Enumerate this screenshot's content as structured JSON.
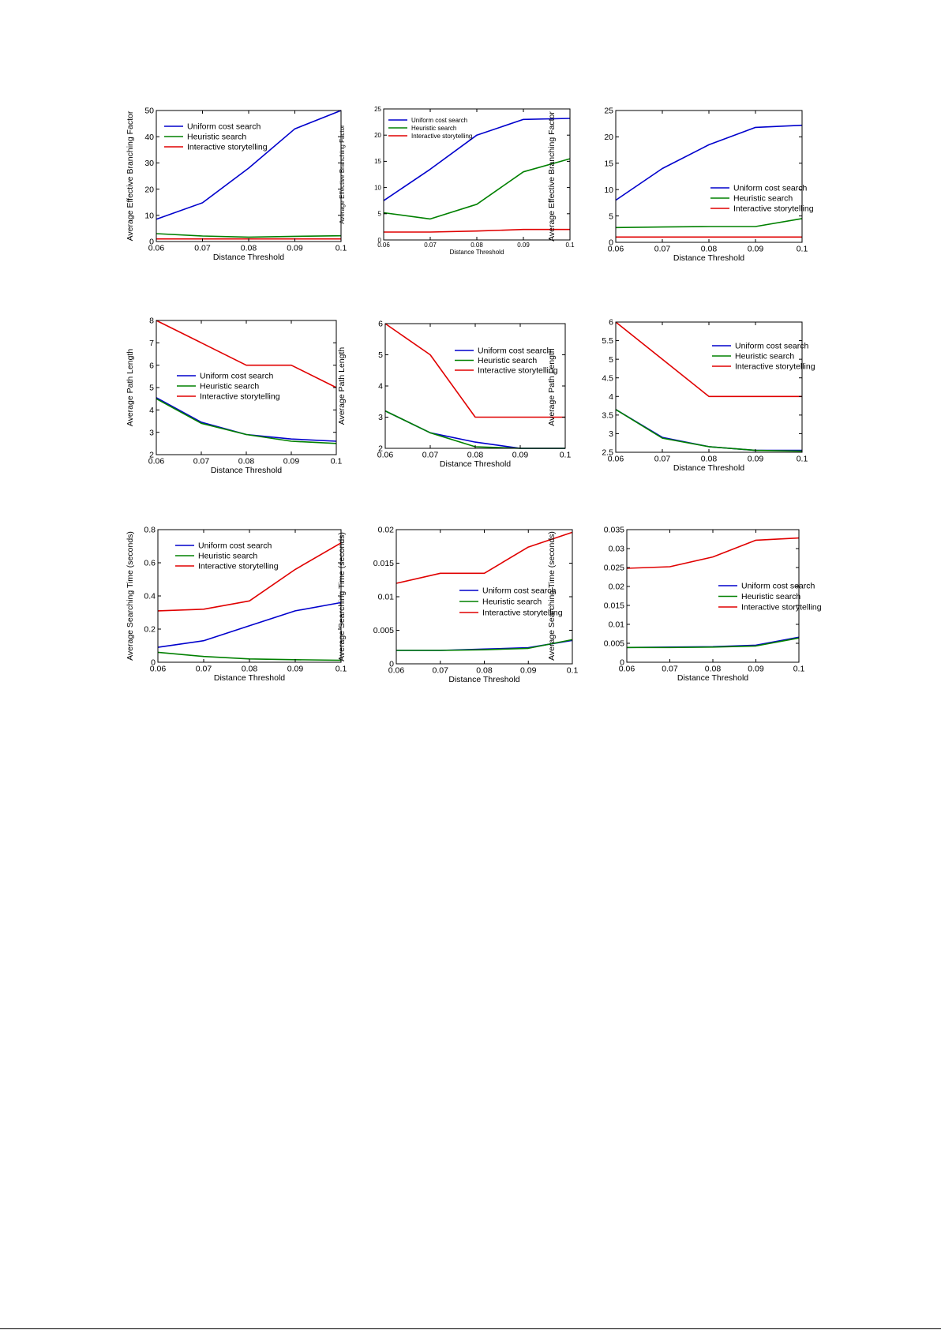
{
  "colors": {
    "uniform": "#0000cc",
    "heuristic": "#008000",
    "interactive": "#e00000"
  },
  "chart_data": [
    {
      "type": "line",
      "title": "",
      "xlabel": "Distance Threshold",
      "ylabel": "Average Effective Branching Factor",
      "x": [
        0.06,
        0.07,
        0.08,
        0.09,
        0.1
      ],
      "xticks": [
        "0.06",
        "0.07",
        "0.08",
        "0.09",
        "0.1"
      ],
      "ylim": [
        0,
        50
      ],
      "yticks": [
        0,
        10,
        20,
        30,
        40,
        50
      ],
      "ytick_labels": [
        "0",
        "10",
        "20",
        "30",
        "40",
        "50"
      ],
      "legend_position": "top-left",
      "series": [
        {
          "name": "Uniform cost search",
          "color_key": "uniform",
          "values": [
            8.5,
            14.8,
            28,
            43,
            50
          ]
        },
        {
          "name": "Heuristic search",
          "color_key": "heuristic",
          "values": [
            3,
            2.1,
            1.7,
            2,
            2.2
          ]
        },
        {
          "name": "Interactive storytelling",
          "color_key": "interactive",
          "values": [
            1,
            1,
            1,
            1,
            1
          ]
        }
      ]
    },
    {
      "type": "line",
      "title": "",
      "xlabel": "Distance Threshold",
      "ylabel": "Average Effective Branching Factor",
      "x": [
        0.06,
        0.07,
        0.08,
        0.09,
        0.1
      ],
      "xticks": [
        "0.06",
        "0.07",
        "0.08",
        "0.09",
        "0.1"
      ],
      "ylim": [
        0,
        25
      ],
      "yticks": [
        0,
        5,
        10,
        15,
        20,
        25
      ],
      "ytick_labels": [
        "0",
        "5",
        "10",
        "15",
        "20",
        "25"
      ],
      "legend_position": "top-left",
      "series": [
        {
          "name": "Uniform cost search",
          "color_key": "uniform",
          "values": [
            7.5,
            13.5,
            20,
            23,
            23.2
          ]
        },
        {
          "name": "Heuristic search",
          "color_key": "heuristic",
          "values": [
            5.2,
            4,
            6.8,
            13,
            15.5
          ]
        },
        {
          "name": "Interactive storytelling",
          "color_key": "interactive",
          "values": [
            1.5,
            1.5,
            1.7,
            2,
            2
          ]
        }
      ]
    },
    {
      "type": "line",
      "title": "",
      "xlabel": "Distance Threshold",
      "ylabel": "Average Effective Branching Factor",
      "x": [
        0.06,
        0.07,
        0.08,
        0.09,
        0.1
      ],
      "xticks": [
        "0.06",
        "0.07",
        "0.08",
        "0.09",
        "0.1"
      ],
      "ylim": [
        0,
        25
      ],
      "yticks": [
        0,
        5,
        10,
        15,
        20,
        25
      ],
      "ytick_labels": [
        "0",
        "5",
        "10",
        "15",
        "20",
        "25"
      ],
      "legend_position": "center-right",
      "series": [
        {
          "name": "Uniform cost search",
          "color_key": "uniform",
          "values": [
            8,
            14,
            18.5,
            21.8,
            22.2
          ]
        },
        {
          "name": "Heuristic search",
          "color_key": "heuristic",
          "values": [
            2.8,
            2.9,
            3,
            3,
            4.5
          ]
        },
        {
          "name": "Interactive storytelling",
          "color_key": "interactive",
          "values": [
            1,
            1,
            1,
            1,
            1
          ]
        }
      ]
    },
    {
      "type": "line",
      "title": "",
      "xlabel": "Distance Threshold",
      "ylabel": "Average Path Length",
      "x": [
        0.06,
        0.07,
        0.08,
        0.09,
        0.1
      ],
      "xticks": [
        "0.06",
        "0.07",
        "0.08",
        "0.09",
        "0.1"
      ],
      "ylim": [
        2,
        8
      ],
      "yticks": [
        2,
        3,
        4,
        5,
        6,
        7,
        8
      ],
      "ytick_labels": [
        "2",
        "3",
        "4",
        "5",
        "6",
        "7",
        "8"
      ],
      "legend_position": "center-left",
      "series": [
        {
          "name": "Uniform cost search",
          "color_key": "uniform",
          "values": [
            4.55,
            3.45,
            2.9,
            2.7,
            2.6
          ]
        },
        {
          "name": "Heuristic search",
          "color_key": "heuristic",
          "values": [
            4.5,
            3.4,
            2.9,
            2.6,
            2.5
          ]
        },
        {
          "name": "Interactive storytelling",
          "color_key": "interactive",
          "values": [
            8,
            7,
            6,
            6,
            5
          ]
        }
      ]
    },
    {
      "type": "line",
      "title": "",
      "xlabel": "Distance Threshold",
      "ylabel": "Average Path Length",
      "x": [
        0.06,
        0.07,
        0.08,
        0.09,
        0.1
      ],
      "xticks": [
        "0.06",
        "0.07",
        "0.08",
        "0.09",
        "0.1"
      ],
      "ylim": [
        2,
        6
      ],
      "yticks": [
        2,
        3,
        4,
        5,
        6
      ],
      "ytick_labels": [
        "2",
        "3",
        "4",
        "5",
        "6"
      ],
      "legend_position": "top-right",
      "series": [
        {
          "name": "Uniform cost search",
          "color_key": "uniform",
          "values": [
            3.2,
            2.5,
            2.2,
            2,
            2
          ]
        },
        {
          "name": "Heuristic search",
          "color_key": "heuristic",
          "values": [
            3.2,
            2.5,
            2.05,
            2,
            2
          ]
        },
        {
          "name": "Interactive storytelling",
          "color_key": "interactive",
          "values": [
            6,
            5,
            3,
            3,
            3
          ]
        }
      ]
    },
    {
      "type": "line",
      "title": "",
      "xlabel": "Distance Threshold",
      "ylabel": "Average Path Length",
      "x": [
        0.06,
        0.07,
        0.08,
        0.09,
        0.1
      ],
      "xticks": [
        "0.06",
        "0.07",
        "0.08",
        "0.09",
        "0.1"
      ],
      "ylim": [
        2.5,
        6
      ],
      "yticks": [
        2.5,
        3,
        3.5,
        4,
        4.5,
        5,
        5.5,
        6
      ],
      "ytick_labels": [
        "2.5",
        "3",
        "3.5",
        "4",
        "4.5",
        "5",
        "5.5",
        "6"
      ],
      "legend_position": "top-right",
      "series": [
        {
          "name": "Uniform cost search",
          "color_key": "uniform",
          "values": [
            3.65,
            2.9,
            2.65,
            2.55,
            2.55
          ]
        },
        {
          "name": "Heuristic search",
          "color_key": "heuristic",
          "values": [
            3.65,
            2.88,
            2.65,
            2.55,
            2.53
          ]
        },
        {
          "name": "Interactive storytelling",
          "color_key": "interactive",
          "values": [
            6,
            5,
            4,
            4,
            4
          ]
        }
      ]
    },
    {
      "type": "line",
      "title": "",
      "xlabel": "Distance Threshold",
      "ylabel": "Average Searching Time (seconds)",
      "x": [
        0.06,
        0.07,
        0.08,
        0.09,
        0.1
      ],
      "xticks": [
        "0.06",
        "0.07",
        "0.08",
        "0.09",
        "0.1"
      ],
      "ylim": [
        0,
        0.8
      ],
      "yticks": [
        0,
        0.2,
        0.4,
        0.6,
        0.8
      ],
      "ytick_labels": [
        "0",
        "0.2",
        "0.4",
        "0.6",
        "0.8"
      ],
      "legend_position": "top-left",
      "series": [
        {
          "name": "Uniform cost search",
          "color_key": "uniform",
          "values": [
            0.09,
            0.13,
            0.22,
            0.31,
            0.36
          ]
        },
        {
          "name": "Heuristic search",
          "color_key": "heuristic",
          "values": [
            0.06,
            0.035,
            0.02,
            0.015,
            0.012
          ]
        },
        {
          "name": "Interactive storytelling",
          "color_key": "interactive",
          "values": [
            0.31,
            0.32,
            0.37,
            0.56,
            0.72
          ]
        }
      ]
    },
    {
      "type": "line",
      "title": "",
      "xlabel": "Distance Threshold",
      "ylabel": "Average Searching Time (seconds)",
      "x": [
        0.06,
        0.07,
        0.08,
        0.09,
        0.1
      ],
      "xticks": [
        "0.06",
        "0.07",
        "0.08",
        "0.09",
        "0.1"
      ],
      "ylim": [
        0,
        0.02
      ],
      "yticks": [
        0,
        0.005,
        0.01,
        0.015,
        0.02
      ],
      "ytick_labels": [
        "0",
        "0.005",
        "0.01",
        "0.015",
        "0.02"
      ],
      "legend_position": "center-right",
      "series": [
        {
          "name": "Uniform cost search",
          "color_key": "uniform",
          "values": [
            0.002,
            0.002,
            0.0022,
            0.0024,
            0.0035
          ]
        },
        {
          "name": "Heuristic search",
          "color_key": "heuristic",
          "values": [
            0.002,
            0.002,
            0.0021,
            0.0023,
            0.0036
          ]
        },
        {
          "name": "Interactive storytelling",
          "color_key": "interactive",
          "values": [
            0.012,
            0.0135,
            0.0135,
            0.0174,
            0.0196
          ]
        }
      ]
    },
    {
      "type": "line",
      "title": "",
      "xlabel": "Distance Threshold",
      "ylabel": "Average Searching Time (seconds)",
      "x": [
        0.06,
        0.07,
        0.08,
        0.09,
        0.1
      ],
      "xticks": [
        "0.06",
        "0.07",
        "0.08",
        "0.09",
        "0.1"
      ],
      "ylim": [
        0,
        0.035
      ],
      "yticks": [
        0,
        0.005,
        0.01,
        0.015,
        0.02,
        0.025,
        0.03,
        0.035
      ],
      "ytick_labels": [
        "0",
        "0.005",
        "0.01",
        "0.015",
        "0.02",
        "0.025",
        "0.03",
        "0.035"
      ],
      "legend_position": "center-right",
      "series": [
        {
          "name": "Uniform cost search",
          "color_key": "uniform",
          "values": [
            0.0039,
            0.004,
            0.0041,
            0.0045,
            0.0066
          ]
        },
        {
          "name": "Heuristic search",
          "color_key": "heuristic",
          "values": [
            0.0039,
            0.0039,
            0.004,
            0.0043,
            0.0064
          ]
        },
        {
          "name": "Interactive storytelling",
          "color_key": "interactive",
          "values": [
            0.0248,
            0.0252,
            0.0278,
            0.0322,
            0.0328
          ]
        }
      ]
    }
  ]
}
